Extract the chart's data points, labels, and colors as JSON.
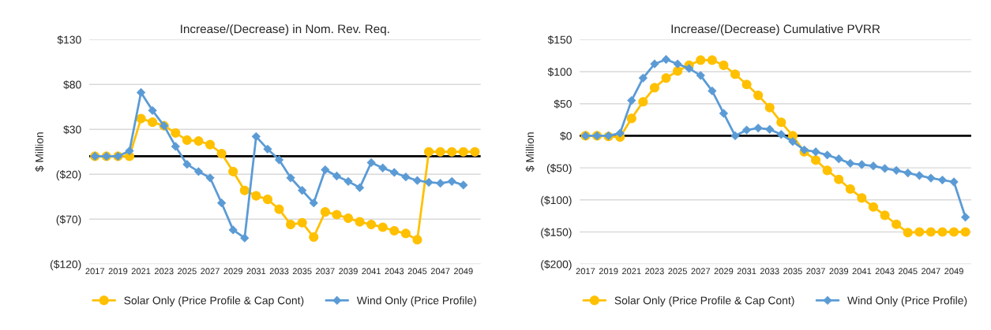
{
  "chart_data": [
    {
      "type": "line",
      "title": "Increase/(Decrease) in Nom. Rev. Req.",
      "ylabel": "$ Million",
      "categories": [
        "2017",
        null,
        "2019",
        null,
        "2021",
        null,
        "2023",
        null,
        "2025",
        null,
        "2027",
        null,
        "2029",
        null,
        "2031",
        null,
        "2033",
        null,
        "2035",
        null,
        "2037",
        null,
        "2039",
        null,
        "2041",
        null,
        "2043",
        null,
        "2045",
        null,
        "2047",
        null,
        "2049",
        null
      ],
      "series": [
        {
          "name": "Solar Only (Price Profile & Cap Cont)",
          "color": "#ffc000",
          "marker": "circle",
          "values": [
            0,
            0,
            0,
            0,
            42,
            38,
            34,
            26,
            18,
            17,
            13,
            3,
            -17,
            -38,
            -44,
            -48,
            -59,
            -76,
            -74,
            -90,
            -62,
            -65,
            -69,
            -73,
            -76,
            -79,
            -83,
            -86,
            -93,
            5,
            5,
            5,
            5,
            5
          ]
        },
        {
          "name": "Wind Only (Price Profile)",
          "color": "#5b9bd5",
          "marker": "diamond",
          "values": [
            0,
            0,
            0,
            6,
            71,
            51,
            34,
            11,
            -9,
            -17,
            -24,
            -52,
            -82,
            -91,
            22,
            8,
            -4,
            -24,
            -38,
            -52,
            -15,
            -22,
            -28,
            -35,
            -7,
            -13,
            -18,
            -23,
            -27,
            -29,
            -30,
            -28,
            -32,
            null
          ]
        }
      ],
      "ylim": [
        -120,
        130
      ],
      "yticks": [
        {
          "value": -120,
          "label": "($120)"
        },
        {
          "value": -70,
          "label": "($70)"
        },
        {
          "value": -20,
          "label": "($20)"
        },
        {
          "value": 30,
          "label": "$30"
        },
        {
          "value": 80,
          "label": "$80"
        },
        {
          "value": 130,
          "label": "$130"
        }
      ],
      "ref_lines": [
        {
          "axis": "y",
          "value": 0,
          "color": "#000000"
        }
      ],
      "grid": "y",
      "legend": "bottom",
      "line_style": "solid"
    },
    {
      "type": "line",
      "title": "Increase/(Decrease) Cumulative PVRR",
      "ylabel": "$ Million",
      "categories": [
        "2017",
        null,
        "2019",
        null,
        "2021",
        null,
        "2023",
        null,
        "2025",
        null,
        "2027",
        null,
        "2029",
        null,
        "2031",
        null,
        "2033",
        null,
        "2035",
        null,
        "2037",
        null,
        "2039",
        null,
        "2041",
        null,
        "2043",
        null,
        "2045",
        null,
        "2047",
        null,
        "2049",
        null
      ],
      "series": [
        {
          "name": "Solar Only (Price Profile & Cap Cont)",
          "color": "#ffc000",
          "marker": "circle",
          "values": [
            0,
            0,
            -1,
            -2,
            27,
            53,
            75,
            90,
            101,
            110,
            118,
            118,
            110,
            96,
            80,
            63,
            44,
            21,
            0,
            -25,
            -38,
            -54,
            -68,
            -83,
            -97,
            -111,
            -124,
            -138,
            -151,
            -150,
            -150,
            -150,
            -150,
            -150
          ]
        },
        {
          "name": "Wind Only (Price Profile)",
          "color": "#5b9bd5",
          "marker": "diamond",
          "values": [
            0,
            0,
            0,
            4,
            55,
            90,
            112,
            119,
            112,
            105,
            94,
            70,
            35,
            0,
            9,
            12,
            10,
            2,
            -9,
            -22,
            -25,
            -30,
            -36,
            -43,
            -45,
            -47,
            -51,
            -54,
            -58,
            -62,
            -66,
            -69,
            -72,
            -127
          ]
        }
      ],
      "ylim": [
        -200,
        150
      ],
      "yticks": [
        {
          "value": -200,
          "label": "($200)"
        },
        {
          "value": -150,
          "label": "($150)"
        },
        {
          "value": -100,
          "label": "($100)"
        },
        {
          "value": -50,
          "label": "($50)"
        },
        {
          "value": 0,
          "label": "$0"
        },
        {
          "value": 50,
          "label": "$50"
        },
        {
          "value": 100,
          "label": "$100"
        },
        {
          "value": 150,
          "label": "$150"
        }
      ],
      "ref_lines": [
        {
          "axis": "y",
          "value": 0,
          "color": "#000000"
        }
      ],
      "grid": "y",
      "legend": "bottom",
      "line_style": "solid"
    }
  ]
}
